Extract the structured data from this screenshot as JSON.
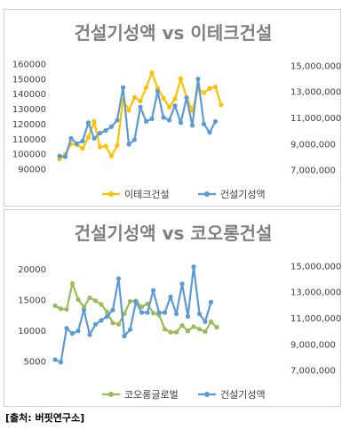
{
  "chart_data": [
    {
      "type": "line",
      "title": "건설기성액 vs 이테크건설",
      "x_count": 37,
      "y_left_ticks": [
        "160000",
        "150000",
        "140000",
        "130000",
        "120000",
        "110000",
        "100000",
        "90000"
      ],
      "y_left_range": [
        85000,
        165000
      ],
      "y_right_ticks": [
        "15,000,000",
        "13,000,000",
        "11,000,000",
        "9,000,000",
        "7,000,000"
      ],
      "y_right_range": [
        6500000,
        15700000
      ],
      "legend_position": "bottom",
      "series": [
        {
          "name": "이테크건설",
          "axis": "left",
          "color": "#FFC000",
          "values": [
            96500,
            99500,
            106500,
            106000,
            103500,
            111000,
            121500,
            104500,
            105000,
            98500,
            105500,
            136000,
            129000,
            137500,
            135000,
            144000,
            154000,
            143500,
            137000,
            131000,
            136500,
            150000,
            137500,
            128500,
            143500,
            140500,
            143500,
            144500,
            132500
          ]
        },
        {
          "name": "건설기성액",
          "axis": "right",
          "color": "#5B9BD5",
          "values": [
            8050000,
            8000000,
            9400000,
            9000000,
            9200000,
            10600000,
            9400000,
            9800000,
            10000000,
            10300000,
            10800000,
            13300000,
            8950000,
            9300000,
            11800000,
            10700000,
            10900000,
            13000000,
            11000000,
            10800000,
            11900000,
            10600000,
            12500000,
            10400000,
            13950000,
            10500000,
            9850000,
            10700000
          ]
        }
      ]
    },
    {
      "type": "line",
      "title": "건설기성액 vs 코오롱건설",
      "x_count": 37,
      "y_left_ticks": [
        "20000",
        "15000",
        "10000",
        "5000"
      ],
      "y_left_range": [
        2500,
        22000
      ],
      "y_right_ticks": [
        "15,000,000",
        "13,000,000",
        "11,000,000",
        "9,000,000",
        "7,000,000"
      ],
      "y_right_range": [
        6500000,
        15700000
      ],
      "legend_position": "bottom",
      "series": [
        {
          "name": "코오롱글로벌",
          "axis": "left",
          "color": "#9BBB59",
          "values": [
            14000,
            13500,
            13400,
            17600,
            15000,
            13800,
            15300,
            14800,
            14200,
            13000,
            11200,
            11000,
            12700,
            14700,
            14800,
            13800,
            14300,
            12800,
            12500,
            10200,
            9700,
            9700,
            10800,
            9900,
            10600,
            10200,
            9800,
            11400,
            10500
          ]
        },
        {
          "name": "건설기성액",
          "axis": "right",
          "color": "#5B9BD5",
          "values": [
            7800,
            7600,
            10200,
            9800,
            10000,
            11600,
            9700,
            10500,
            10800,
            11100,
            11600,
            14000,
            9600,
            10100,
            12200,
            11400,
            11400,
            13100,
            11400,
            11400,
            12600,
            11300,
            13600,
            11100,
            14900,
            11300,
            10700,
            12200
          ]
        }
      ]
    }
  ],
  "source": "[출처: 버핏연구소]"
}
